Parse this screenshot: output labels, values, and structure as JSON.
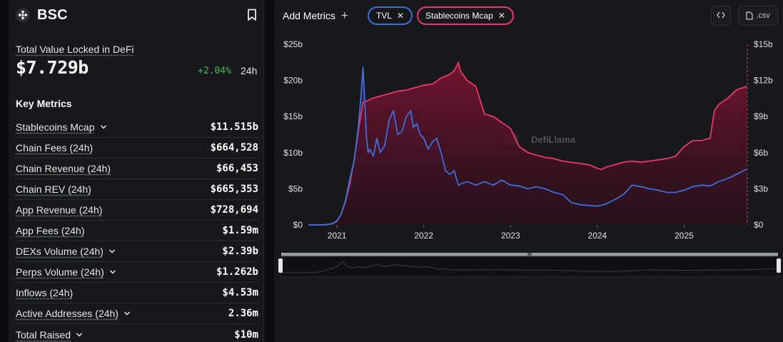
{
  "chain": {
    "name": "BSC"
  },
  "tvl": {
    "label": "Total Value Locked in DeFi",
    "value": "$7.729b",
    "change": "+2.04%",
    "period": "24h"
  },
  "key_metrics": {
    "title": "Key Metrics",
    "items": [
      {
        "label": "Stablecoins Mcap",
        "value": "$11.515b",
        "has_dropdown": true
      },
      {
        "label": "Chain Fees (24h)",
        "value": "$664,528",
        "has_dropdown": false
      },
      {
        "label": "Chain Revenue (24h)",
        "value": "$66,453",
        "has_dropdown": false
      },
      {
        "label": "Chain REV (24h)",
        "value": "$665,353",
        "has_dropdown": false
      },
      {
        "label": "App Revenue (24h)",
        "value": "$728,694",
        "has_dropdown": false
      },
      {
        "label": "App Fees (24h)",
        "value": "$1.59m",
        "has_dropdown": false
      },
      {
        "label": "DEXs Volume (24h)",
        "value": "$2.39b",
        "has_dropdown": true
      },
      {
        "label": "Perps Volume (24h)",
        "value": "$1.262b",
        "has_dropdown": true
      },
      {
        "label": "Inflows (24h)",
        "value": "$4.53m",
        "has_dropdown": false
      },
      {
        "label": "Active Addresses (24h)",
        "value": "2.36m",
        "has_dropdown": true
      },
      {
        "label": "Total Raised",
        "value": "$10m",
        "has_dropdown": true
      }
    ]
  },
  "toolbar": {
    "add_metrics_label": "Add Metrics",
    "pills": [
      {
        "label": "TVL"
      },
      {
        "label": "Stablecoins Mcap"
      }
    ],
    "csv_label": ".csv"
  },
  "colors": {
    "tvl": "#3a6fd8",
    "stablecoins": "#e8376a",
    "positive": "#3fb84f"
  },
  "chart_data": {
    "type": "line",
    "watermark": "DefiLlama",
    "x_tick_labels": [
      "2021",
      "2022",
      "2023",
      "2024",
      "2025"
    ],
    "x_range": [
      2020.67,
      2025.72
    ],
    "left_axis": {
      "min": 0,
      "max": 25,
      "ticks": [
        0,
        5,
        10,
        15,
        20,
        25
      ],
      "tick_labels": [
        "$0",
        "$5b",
        "$10b",
        "$15b",
        "$20b",
        "$25b"
      ]
    },
    "right_axis": {
      "min": 0,
      "max": 15,
      "ticks": [
        0,
        3,
        6,
        9,
        12,
        15
      ],
      "tick_labels": [
        "$0",
        "$3b",
        "$6b",
        "$9b",
        "$12b",
        "$15b"
      ]
    },
    "series": [
      {
        "name": "TVL",
        "axis": "left",
        "unit": "billions USD",
        "x": [
          2020.67,
          2020.85,
          2020.95,
          2021.0,
          2021.05,
          2021.1,
          2021.15,
          2021.2,
          2021.25,
          2021.28,
          2021.3,
          2021.32,
          2021.34,
          2021.36,
          2021.38,
          2021.42,
          2021.46,
          2021.5,
          2021.55,
          2021.6,
          2021.65,
          2021.7,
          2021.75,
          2021.8,
          2021.85,
          2021.88,
          2021.92,
          2021.96,
          2022.0,
          2022.05,
          2022.1,
          2022.15,
          2022.2,
          2022.25,
          2022.3,
          2022.35,
          2022.4,
          2022.45,
          2022.5,
          2022.6,
          2022.7,
          2022.8,
          2022.9,
          2023.0,
          2023.1,
          2023.2,
          2023.3,
          2023.4,
          2023.5,
          2023.6,
          2023.7,
          2023.8,
          2023.9,
          2024.0,
          2024.1,
          2024.2,
          2024.3,
          2024.4,
          2024.5,
          2024.6,
          2024.7,
          2024.8,
          2024.9,
          2025.0,
          2025.1,
          2025.2,
          2025.3,
          2025.4,
          2025.5,
          2025.6,
          2025.72
        ],
        "values": [
          0,
          0,
          0.2,
          0.6,
          1.5,
          3.5,
          6.5,
          9,
          14,
          18.5,
          21.8,
          17,
          12,
          10,
          10.5,
          9.5,
          12,
          10,
          11,
          14.5,
          15.8,
          12.5,
          13,
          15,
          15.8,
          13.5,
          14,
          12.5,
          12,
          10.5,
          11.5,
          12,
          10,
          7.5,
          7,
          7.5,
          5.5,
          5.8,
          6,
          5.5,
          6,
          5.5,
          6.2,
          5.5,
          5.4,
          5,
          5.3,
          5,
          4.5,
          4.2,
          3.1,
          2.8,
          2.7,
          2.6,
          2.9,
          3.5,
          4.2,
          5.5,
          5.3,
          5,
          4.8,
          4.5,
          4.5,
          4.8,
          5.3,
          5.5,
          5.4,
          6,
          6.4,
          7,
          7.7
        ]
      },
      {
        "name": "Stablecoins Mcap",
        "axis": "right",
        "unit": "billions USD",
        "x": [
          2020.67,
          2020.85,
          2020.95,
          2021.0,
          2021.05,
          2021.1,
          2021.15,
          2021.2,
          2021.25,
          2021.3,
          2021.35,
          2021.4,
          2021.45,
          2021.5,
          2021.6,
          2021.7,
          2021.8,
          2021.85,
          2021.9,
          2022.0,
          2022.1,
          2022.2,
          2022.3,
          2022.35,
          2022.4,
          2022.42,
          2022.45,
          2022.5,
          2022.6,
          2022.7,
          2022.8,
          2022.9,
          2023.0,
          2023.1,
          2023.2,
          2023.3,
          2023.4,
          2023.5,
          2023.6,
          2023.7,
          2023.8,
          2023.9,
          2024.0,
          2024.05,
          2024.1,
          2024.2,
          2024.3,
          2024.4,
          2024.5,
          2024.6,
          2024.7,
          2024.8,
          2024.9,
          2025.0,
          2025.1,
          2025.2,
          2025.3,
          2025.35,
          2025.4,
          2025.5,
          2025.6,
          2025.72
        ],
        "values": [
          0,
          0,
          0.1,
          0.3,
          0.9,
          2,
          3.5,
          5.5,
          8,
          10.2,
          10.3,
          10.5,
          10.6,
          10.7,
          10.9,
          11.1,
          11.2,
          11.3,
          11.4,
          11.6,
          11.7,
          12.2,
          12.5,
          12.8,
          13.5,
          12.8,
          12.5,
          12,
          11.5,
          9.2,
          9,
          8.5,
          8,
          6.5,
          6,
          5.8,
          5.6,
          5.5,
          5.3,
          5.2,
          5.1,
          5,
          4.7,
          4.6,
          4.8,
          5.0,
          5.2,
          5.3,
          5.2,
          5.3,
          5.4,
          5.5,
          5.7,
          6.5,
          7,
          7,
          7.2,
          9.5,
          10,
          10.5,
          11.2,
          11.5
        ]
      }
    ]
  }
}
